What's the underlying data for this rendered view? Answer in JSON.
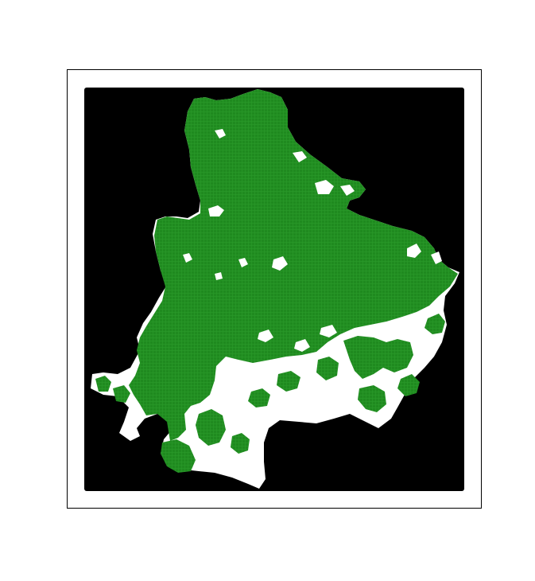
{
  "map": {
    "background_color": "#000000",
    "land_color": "#ffffff",
    "cover_color": "#1f8a1f",
    "frame_color": "#000000",
    "figure_background": "#ffffff",
    "layers": [
      "background-mask",
      "region-land",
      "green-cover"
    ]
  }
}
